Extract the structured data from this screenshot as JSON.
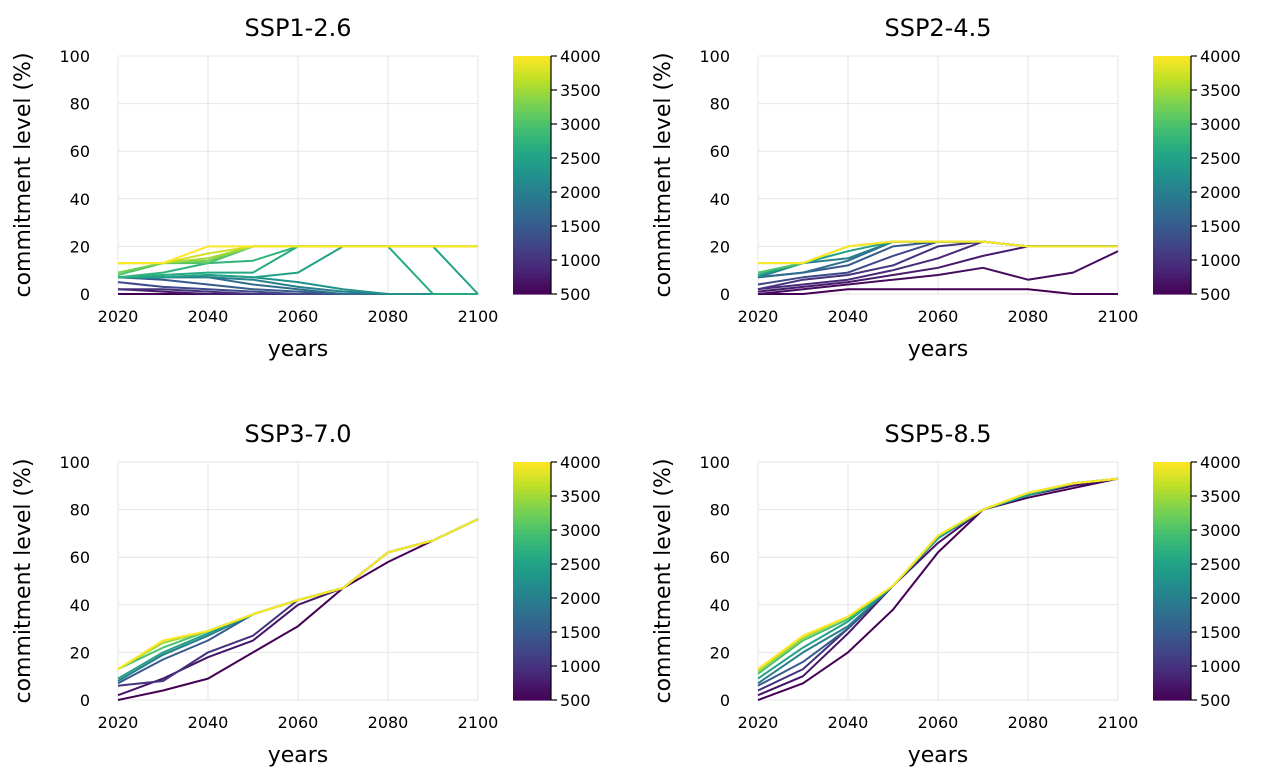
{
  "chart_data": [
    {
      "type": "line",
      "title": "SSP1-2.6",
      "xlabel": "years",
      "ylabel": "commitment level (%)",
      "xlim": [
        2020,
        2100
      ],
      "ylim": [
        0,
        100
      ],
      "xticks": [
        2020,
        2040,
        2060,
        2080,
        2100
      ],
      "yticks": [
        0,
        20,
        40,
        60,
        80,
        100
      ],
      "grid": true,
      "colorbar": {
        "colormap": "viridis",
        "range": [
          500,
          4000
        ],
        "ticks": [
          500,
          1000,
          1500,
          2000,
          2500,
          3000,
          3500,
          4000
        ]
      },
      "x": [
        2020,
        2030,
        2040,
        2050,
        2060,
        2070,
        2080,
        2090,
        2100
      ],
      "series": [
        {
          "color_value": 500,
          "values": [
            0,
            0,
            0,
            0,
            0,
            0,
            0,
            0,
            0
          ]
        },
        {
          "color_value": 750,
          "values": [
            2,
            1,
            0,
            0,
            0,
            0,
            0,
            0,
            0
          ]
        },
        {
          "color_value": 1000,
          "values": [
            2,
            2,
            1,
            0,
            0,
            0,
            0,
            0,
            0
          ]
        },
        {
          "color_value": 1250,
          "values": [
            5,
            3,
            2,
            1,
            0,
            0,
            0,
            0,
            0
          ]
        },
        {
          "color_value": 1500,
          "values": [
            7,
            6,
            4,
            2,
            1,
            0,
            0,
            0,
            0
          ]
        },
        {
          "color_value": 1750,
          "values": [
            7,
            7,
            7,
            4,
            2,
            0,
            0,
            0,
            0
          ]
        },
        {
          "color_value": 2000,
          "values": [
            7,
            7,
            7,
            6,
            3,
            1,
            0,
            0,
            0
          ]
        },
        {
          "color_value": 2250,
          "values": [
            7,
            7,
            8,
            7,
            5,
            2,
            0,
            0,
            0
          ]
        },
        {
          "color_value": 2500,
          "values": [
            7,
            7,
            8,
            7,
            9,
            20,
            20,
            20,
            0
          ]
        },
        {
          "color_value": 2625,
          "values": [
            7,
            8,
            9,
            9,
            20,
            20,
            20,
            0,
            0
          ]
        },
        {
          "color_value": 2750,
          "values": [
            7,
            9,
            13,
            14,
            20,
            20,
            20,
            20,
            20
          ]
        },
        {
          "color_value": 3000,
          "values": [
            8,
            13,
            13,
            20,
            20,
            20,
            20,
            20,
            20
          ]
        },
        {
          "color_value": 3250,
          "values": [
            9,
            13,
            14,
            20,
            20,
            20,
            20,
            20,
            20
          ]
        },
        {
          "color_value": 3500,
          "values": [
            13,
            13,
            15,
            20,
            20,
            20,
            20,
            20,
            20
          ]
        },
        {
          "color_value": 3750,
          "values": [
            13,
            13,
            17,
            20,
            20,
            20,
            20,
            20,
            20
          ]
        },
        {
          "color_value": 4000,
          "values": [
            13,
            13,
            20,
            20,
            20,
            20,
            20,
            20,
            20
          ]
        }
      ]
    },
    {
      "type": "line",
      "title": "SSP2-4.5",
      "xlabel": "years",
      "ylabel": "commitment level (%)",
      "xlim": [
        2020,
        2100
      ],
      "ylim": [
        0,
        100
      ],
      "xticks": [
        2020,
        2040,
        2060,
        2080,
        2100
      ],
      "yticks": [
        0,
        20,
        40,
        60,
        80,
        100
      ],
      "grid": true,
      "colorbar": {
        "colormap": "viridis",
        "range": [
          500,
          4000
        ],
        "ticks": [
          500,
          1000,
          1500,
          2000,
          2500,
          3000,
          3500,
          4000
        ]
      },
      "x": [
        2020,
        2030,
        2040,
        2050,
        2060,
        2070,
        2080,
        2090,
        2100
      ],
      "series": [
        {
          "color_value": 500,
          "values": [
            0,
            0,
            2,
            2,
            2,
            2,
            2,
            0,
            0
          ]
        },
        {
          "color_value": 600,
          "values": [
            0,
            2,
            4,
            6,
            8,
            11,
            6,
            9,
            18
          ]
        },
        {
          "color_value": 750,
          "values": [
            1,
            3,
            5,
            8,
            11,
            16,
            20,
            20,
            20
          ]
        },
        {
          "color_value": 900,
          "values": [
            2,
            4,
            6,
            10,
            15,
            22,
            20,
            20,
            20
          ]
        },
        {
          "color_value": 1000,
          "values": [
            2,
            6,
            8,
            12,
            20,
            22,
            20,
            20,
            20
          ]
        },
        {
          "color_value": 1250,
          "values": [
            4,
            7,
            9,
            16,
            22,
            22,
            20,
            20,
            20
          ]
        },
        {
          "color_value": 1500,
          "values": [
            7,
            9,
            12,
            20,
            22,
            22,
            20,
            20,
            20
          ]
        },
        {
          "color_value": 1750,
          "values": [
            7,
            9,
            14,
            22,
            22,
            22,
            20,
            20,
            20
          ]
        },
        {
          "color_value": 2000,
          "values": [
            7,
            13,
            15,
            22,
            22,
            22,
            20,
            20,
            20
          ]
        },
        {
          "color_value": 2500,
          "values": [
            8,
            13,
            18,
            22,
            22,
            22,
            20,
            20,
            20
          ]
        },
        {
          "color_value": 3000,
          "values": [
            9,
            13,
            20,
            22,
            22,
            22,
            20,
            20,
            20
          ]
        },
        {
          "color_value": 3500,
          "values": [
            13,
            13,
            20,
            22,
            22,
            22,
            20,
            20,
            20
          ]
        },
        {
          "color_value": 4000,
          "values": [
            13,
            13,
            20,
            22,
            22,
            22,
            20,
            20,
            20
          ]
        }
      ]
    },
    {
      "type": "line",
      "title": "SSP3-7.0",
      "xlabel": "years",
      "ylabel": "commitment level (%)",
      "xlim": [
        2020,
        2100
      ],
      "ylim": [
        0,
        100
      ],
      "xticks": [
        2020,
        2040,
        2060,
        2080,
        2100
      ],
      "yticks": [
        0,
        20,
        40,
        60,
        80,
        100
      ],
      "grid": true,
      "colorbar": {
        "colormap": "viridis",
        "range": [
          500,
          4000
        ],
        "ticks": [
          500,
          1000,
          1500,
          2000,
          2500,
          3000,
          3500,
          4000
        ]
      },
      "x": [
        2020,
        2030,
        2040,
        2050,
        2060,
        2070,
        2080,
        2090,
        2100
      ],
      "series": [
        {
          "color_value": 500,
          "values": [
            0,
            4,
            9,
            20,
            31,
            47,
            58,
            67,
            76
          ]
        },
        {
          "color_value": 700,
          "values": [
            2,
            9,
            18,
            25,
            40,
            47,
            62,
            67,
            76
          ]
        },
        {
          "color_value": 1000,
          "values": [
            6,
            8,
            20,
            27,
            42,
            47,
            62,
            67,
            76
          ]
        },
        {
          "color_value": 1500,
          "values": [
            7,
            17,
            25,
            36,
            42,
            47,
            62,
            67,
            76
          ]
        },
        {
          "color_value": 2000,
          "values": [
            8,
            19,
            27,
            36,
            42,
            47,
            62,
            67,
            76
          ]
        },
        {
          "color_value": 2500,
          "values": [
            9,
            20,
            28,
            36,
            42,
            47,
            62,
            67,
            76
          ]
        },
        {
          "color_value": 3000,
          "values": [
            13,
            22,
            29,
            36,
            42,
            47,
            62,
            67,
            76
          ]
        },
        {
          "color_value": 3500,
          "values": [
            13,
            24,
            29,
            36,
            42,
            47,
            62,
            67,
            76
          ]
        },
        {
          "color_value": 4000,
          "values": [
            13,
            25,
            29,
            36,
            42,
            47,
            62,
            67,
            76
          ]
        }
      ]
    },
    {
      "type": "line",
      "title": "SSP5-8.5",
      "xlabel": "years",
      "ylabel": "commitment level (%)",
      "xlim": [
        2020,
        2100
      ],
      "ylim": [
        0,
        100
      ],
      "xticks": [
        2020,
        2040,
        2060,
        2080,
        2100
      ],
      "yticks": [
        0,
        20,
        40,
        60,
        80,
        100
      ],
      "grid": true,
      "colorbar": {
        "colormap": "viridis",
        "range": [
          500,
          4000
        ],
        "ticks": [
          500,
          1000,
          1500,
          2000,
          2500,
          3000,
          3500,
          4000
        ]
      },
      "x": [
        2020,
        2030,
        2040,
        2050,
        2060,
        2070,
        2080,
        2090,
        2100
      ],
      "series": [
        {
          "color_value": 500,
          "values": [
            0,
            7,
            20,
            38,
            62,
            80,
            85,
            89,
            93
          ]
        },
        {
          "color_value": 700,
          "values": [
            2,
            10,
            28,
            48,
            66,
            80,
            86,
            90,
            93
          ]
        },
        {
          "color_value": 1000,
          "values": [
            4,
            13,
            30,
            48,
            68,
            80,
            86,
            91,
            93
          ]
        },
        {
          "color_value": 1500,
          "values": [
            6,
            16,
            30,
            48,
            68,
            80,
            86,
            91,
            93
          ]
        },
        {
          "color_value": 2000,
          "values": [
            7,
            20,
            31,
            48,
            68,
            80,
            86,
            91,
            93
          ]
        },
        {
          "color_value": 2500,
          "values": [
            9,
            22,
            33,
            48,
            68,
            80,
            86,
            91,
            93
          ]
        },
        {
          "color_value": 3000,
          "values": [
            11,
            25,
            34,
            48,
            69,
            80,
            87,
            91,
            93
          ]
        },
        {
          "color_value": 3500,
          "values": [
            12,
            26,
            35,
            48,
            69,
            80,
            87,
            91,
            93
          ]
        },
        {
          "color_value": 4000,
          "values": [
            13,
            27,
            35,
            48,
            69,
            80,
            87,
            91,
            93
          ]
        }
      ]
    }
  ]
}
